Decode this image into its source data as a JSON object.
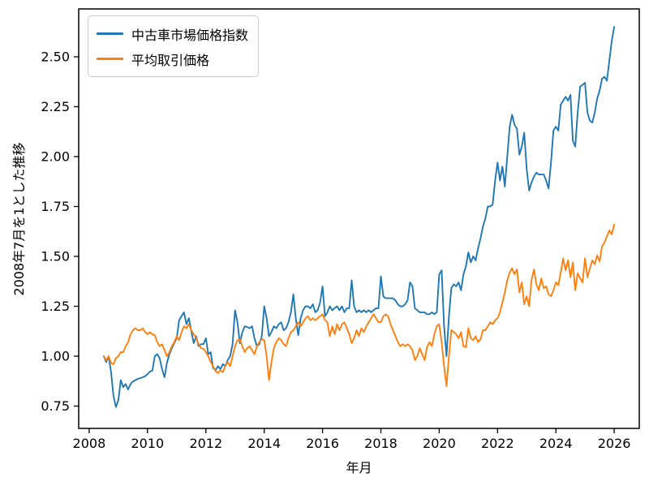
{
  "page": {
    "background": "#ffffff",
    "text_color": "#000000",
    "spine_color": "#000000"
  },
  "chart_data": {
    "type": "line",
    "title": "",
    "xlabel": "年月",
    "ylabel": "2008年7月を1とした推移",
    "grid": false,
    "legend_position": "upper-left",
    "frequency": "monthly",
    "x_start": "2008-07",
    "x_end": "2026-01",
    "x_start_value": 2008.5,
    "x_axis": {
      "ticks": [
        2008,
        2010,
        2012,
        2014,
        2016,
        2018,
        2020,
        2022,
        2024,
        2026
      ],
      "tick_labels": [
        "2008",
        "2010",
        "2012",
        "2014",
        "2016",
        "2018",
        "2020",
        "2022",
        "2024",
        "2026"
      ],
      "range": [
        2007.64,
        2026.86
      ]
    },
    "y_axis": {
      "ticks": [
        0.75,
        1.0,
        1.25,
        1.5,
        1.75,
        2.0,
        2.25,
        2.5
      ],
      "tick_labels": [
        "0.75",
        "1.00",
        "1.25",
        "1.50",
        "1.75",
        "2.00",
        "2.25",
        "2.50"
      ],
      "range": [
        0.638,
        2.74
      ]
    },
    "series": [
      {
        "name": "中古車市場価格指数",
        "color": "#1f77b4",
        "values": [
          1.0,
          0.97,
          1.0,
          0.92,
          0.8,
          0.745,
          0.78,
          0.88,
          0.845,
          0.86,
          0.833,
          0.86,
          0.874,
          0.88,
          0.886,
          0.89,
          0.894,
          0.9,
          0.91,
          0.923,
          0.927,
          1.0,
          1.01,
          0.99,
          0.935,
          0.894,
          0.967,
          1.01,
          1.04,
          1.065,
          1.09,
          1.18,
          1.2,
          1.22,
          1.16,
          1.19,
          1.126,
          1.065,
          1.1,
          1.05,
          1.06,
          1.06,
          1.09,
          1.01,
          1.02,
          0.94,
          0.93,
          0.95,
          0.935,
          0.96,
          0.95,
          0.98,
          1.0,
          1.06,
          1.23,
          1.17,
          1.065,
          1.12,
          1.15,
          1.146,
          1.14,
          1.15,
          1.09,
          1.05,
          1.06,
          1.1,
          1.25,
          1.19,
          1.1,
          1.12,
          1.15,
          1.14,
          1.16,
          1.17,
          1.13,
          1.14,
          1.17,
          1.22,
          1.31,
          1.19,
          1.105,
          1.19,
          1.23,
          1.25,
          1.25,
          1.24,
          1.26,
          1.22,
          1.23,
          1.27,
          1.35,
          1.2,
          1.22,
          1.25,
          1.23,
          1.24,
          1.25,
          1.23,
          1.25,
          1.22,
          1.24,
          1.24,
          1.38,
          1.25,
          1.22,
          1.23,
          1.22,
          1.23,
          1.22,
          1.23,
          1.22,
          1.23,
          1.24,
          1.24,
          1.4,
          1.3,
          1.29,
          1.29,
          1.29,
          1.29,
          1.28,
          1.26,
          1.25,
          1.25,
          1.26,
          1.28,
          1.37,
          1.35,
          1.24,
          1.23,
          1.22,
          1.22,
          1.22,
          1.21,
          1.21,
          1.22,
          1.21,
          1.22,
          1.41,
          1.43,
          1.15,
          1.0,
          1.2,
          1.34,
          1.36,
          1.35,
          1.37,
          1.33,
          1.41,
          1.45,
          1.52,
          1.47,
          1.5,
          1.48,
          1.54,
          1.59,
          1.65,
          1.69,
          1.75,
          1.75,
          1.76,
          1.88,
          1.97,
          1.88,
          1.95,
          1.85,
          2.0,
          2.15,
          2.21,
          2.16,
          2.14,
          2.01,
          2.05,
          2.12,
          1.94,
          1.83,
          1.87,
          1.9,
          1.92,
          1.91,
          1.91,
          1.91,
          1.88,
          1.84,
          1.97,
          2.13,
          2.15,
          2.13,
          2.26,
          2.28,
          2.3,
          2.28,
          2.31,
          2.08,
          2.05,
          2.22,
          2.35,
          2.36,
          2.37,
          2.22,
          2.18,
          2.17,
          2.22,
          2.29,
          2.33,
          2.39,
          2.4,
          2.38,
          2.48,
          2.58,
          2.65
        ]
      },
      {
        "name": "平均取引価格",
        "color": "#ff7f0e",
        "values": [
          1.0,
          0.98,
          1.0,
          0.965,
          0.96,
          0.99,
          1.0,
          1.02,
          1.02,
          1.05,
          1.07,
          1.11,
          1.13,
          1.14,
          1.13,
          1.13,
          1.14,
          1.12,
          1.11,
          1.12,
          1.11,
          1.105,
          1.07,
          1.05,
          1.06,
          1.03,
          1.0,
          1.02,
          1.05,
          1.07,
          1.1,
          1.08,
          1.12,
          1.15,
          1.14,
          1.16,
          1.13,
          1.11,
          1.09,
          1.06,
          1.04,
          1.037,
          1.02,
          1.0,
          0.97,
          0.95,
          0.925,
          0.915,
          0.93,
          0.92,
          0.95,
          0.97,
          0.95,
          1.0,
          1.05,
          1.08,
          1.085,
          1.05,
          1.02,
          1.04,
          1.05,
          1.03,
          1.01,
          1.05,
          1.07,
          1.085,
          1.08,
          1.0,
          0.88,
          0.97,
          1.04,
          1.07,
          1.09,
          1.08,
          1.06,
          1.05,
          1.09,
          1.12,
          1.13,
          1.15,
          1.17,
          1.15,
          1.17,
          1.19,
          1.2,
          1.18,
          1.19,
          1.18,
          1.19,
          1.2,
          1.21,
          1.18,
          1.17,
          1.1,
          1.15,
          1.11,
          1.16,
          1.13,
          1.16,
          1.17,
          1.14,
          1.11,
          1.065,
          1.09,
          1.13,
          1.1,
          1.14,
          1.12,
          1.15,
          1.17,
          1.19,
          1.21,
          1.19,
          1.17,
          1.17,
          1.2,
          1.21,
          1.2,
          1.16,
          1.13,
          1.1,
          1.07,
          1.05,
          1.06,
          1.05,
          1.06,
          1.05,
          1.03,
          0.98,
          1.0,
          1.04,
          1.01,
          0.98,
          1.045,
          1.07,
          1.05,
          1.11,
          1.15,
          1.16,
          1.07,
          0.95,
          0.85,
          1.0,
          1.13,
          1.12,
          1.11,
          1.09,
          1.12,
          1.05,
          1.045,
          1.14,
          1.09,
          1.08,
          1.1,
          1.07,
          1.085,
          1.13,
          1.13,
          1.15,
          1.17,
          1.16,
          1.18,
          1.19,
          1.22,
          1.27,
          1.32,
          1.38,
          1.42,
          1.44,
          1.41,
          1.435,
          1.32,
          1.37,
          1.26,
          1.3,
          1.25,
          1.38,
          1.435,
          1.36,
          1.33,
          1.39,
          1.34,
          1.35,
          1.31,
          1.3,
          1.33,
          1.37,
          1.355,
          1.42,
          1.49,
          1.43,
          1.48,
          1.395,
          1.47,
          1.33,
          1.415,
          1.39,
          1.37,
          1.49,
          1.395,
          1.44,
          1.48,
          1.46,
          1.505,
          1.475,
          1.55,
          1.57,
          1.6,
          1.63,
          1.61,
          1.66
        ]
      }
    ]
  }
}
